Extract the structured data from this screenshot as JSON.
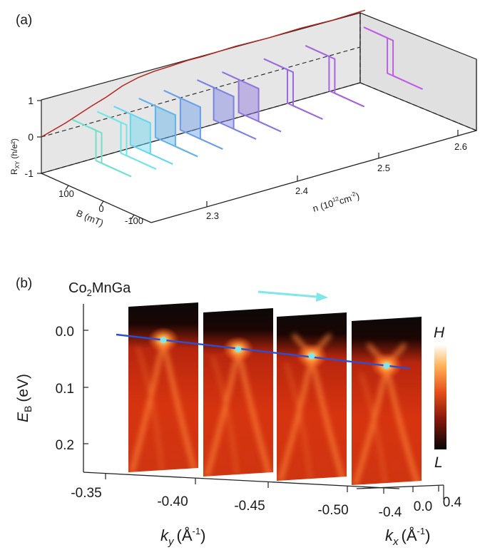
{
  "chart_data": [
    {
      "panel_label": "(a)",
      "type": "line",
      "zlabel": "R",
      "zlabel_sub": "XY",
      "zlabel_unit": "(h/e²)",
      "z_ticks": [
        "1",
        "0",
        "-1"
      ],
      "b_label": "B",
      "b_unit": "(mT)",
      "b_ticks": [
        "100",
        "0",
        "-100"
      ],
      "n_label": "n",
      "n_unit_pre": "(10",
      "n_unit_exp": "12",
      "n_unit_mid": "cm",
      "n_unit_exp2": "-2",
      "n_unit_post": ")",
      "n_ticks": [
        "2.3",
        "2.4",
        "2.5",
        "2.6"
      ],
      "back_trace": {
        "name": "R_xy at B = 0 vs n",
        "color": "#b5241f",
        "n": [
          2.2,
          2.23,
          2.26,
          2.28,
          2.3,
          2.32,
          2.34,
          2.36,
          2.38,
          2.4,
          2.44,
          2.48,
          2.52,
          2.56,
          2.6
        ],
        "rxy": [
          0.0,
          0.2,
          0.45,
          0.6,
          0.78,
          0.9,
          0.94,
          0.97,
          0.98,
          0.99,
          1.0,
          1.0,
          1.0,
          1.0,
          1.0
        ]
      },
      "series": [
        {
          "n": 2.22,
          "color": "#6fe0cc",
          "loop_fill": false
        },
        {
          "n": 2.25,
          "color": "#6fe6e6",
          "loop_fill": false
        },
        {
          "n": 2.27,
          "color": "#66d6f0",
          "loop_fill": true
        },
        {
          "n": 2.3,
          "color": "#5fb2ea",
          "loop_fill": true
        },
        {
          "n": 2.33,
          "color": "#6a9ee8",
          "loop_fill": true
        },
        {
          "n": 2.37,
          "color": "#7b82e3",
          "loop_fill": true
        },
        {
          "n": 2.4,
          "color": "#8f74e0",
          "loop_fill": true
        },
        {
          "n": 2.45,
          "color": "#9c6ae0",
          "loop_fill": false
        },
        {
          "n": 2.5,
          "color": "#a666de",
          "loop_fill": false
        },
        {
          "n": 2.57,
          "color": "#c15ce6",
          "loop_fill": false
        }
      ]
    },
    {
      "panel_label": "(b)",
      "type": "heatmap",
      "material": {
        "pre": "Co",
        "sub1": "2",
        "mid": "MnGa",
        "sub2": ""
      },
      "ylabel": "E",
      "ylabel_sub": "B",
      "ylabel_unit": "(eV)",
      "y_ticks": [
        "0.0",
        "0.1",
        "0.2"
      ],
      "xlabel": "k",
      "xlabel_sub": "y",
      "xlabel_unit_pre": "(Å",
      "xlabel_unit_exp": "-1",
      "xlabel_unit_post": ")",
      "x_ticks": [
        "-0.35",
        "-0.40",
        "-0.45",
        "-0.50"
      ],
      "kx_label": "k",
      "kx_sub": "x",
      "kx_unit_pre": "(Å",
      "kx_unit_exp": "-1",
      "kx_unit_post": ")",
      "kx_ticks": [
        "-0.4",
        "0.0",
        "0.4"
      ],
      "colorbar": {
        "high": "H",
        "low": "L"
      },
      "slices": [
        {
          "ky": -0.38,
          "node_eb": 0.017,
          "crossing": "diverging"
        },
        {
          "ky": -0.42,
          "node_eb": 0.033,
          "crossing": "diverging"
        },
        {
          "ky": -0.46,
          "node_eb": 0.045,
          "crossing": "x-shaped"
        },
        {
          "ky": -0.5,
          "node_eb": 0.062,
          "crossing": "x-shaped"
        }
      ],
      "node_line_color": "#2a4fd6",
      "node_marker_color": "#7fe6ea",
      "arrow_color": "#7fe6ea"
    }
  ]
}
